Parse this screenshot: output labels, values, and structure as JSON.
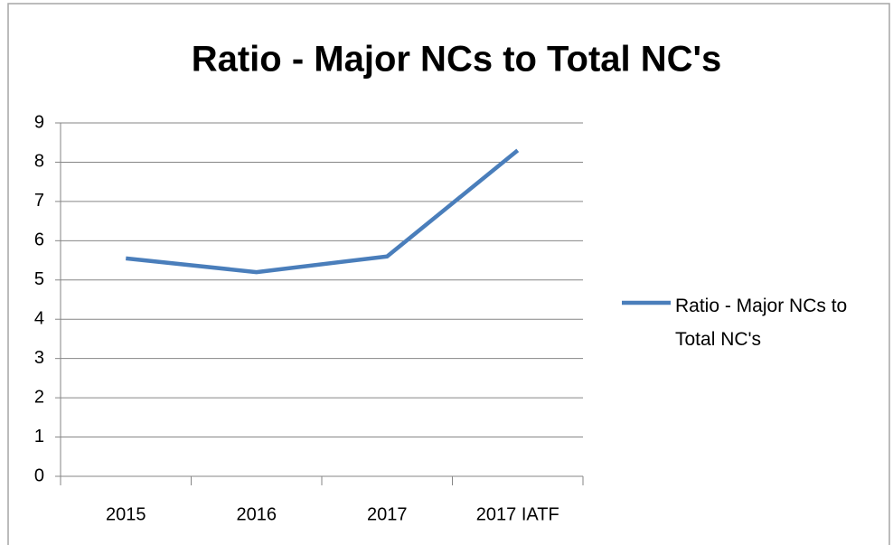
{
  "chart_data": {
    "type": "line",
    "title": "Ratio - Major NCs to Total NC's",
    "categories": [
      "2015",
      "2016",
      "2017",
      "2017 IATF"
    ],
    "series": [
      {
        "name": "Ratio - Major NCs to Total NC's",
        "color": "#4a7ebb",
        "values": [
          5.55,
          5.2,
          5.6,
          8.3
        ]
      }
    ],
    "ylim": [
      0,
      9
    ],
    "yticks": [
      0,
      1,
      2,
      3,
      4,
      5,
      6,
      7,
      8,
      9
    ],
    "grid": true,
    "legend": "right"
  }
}
